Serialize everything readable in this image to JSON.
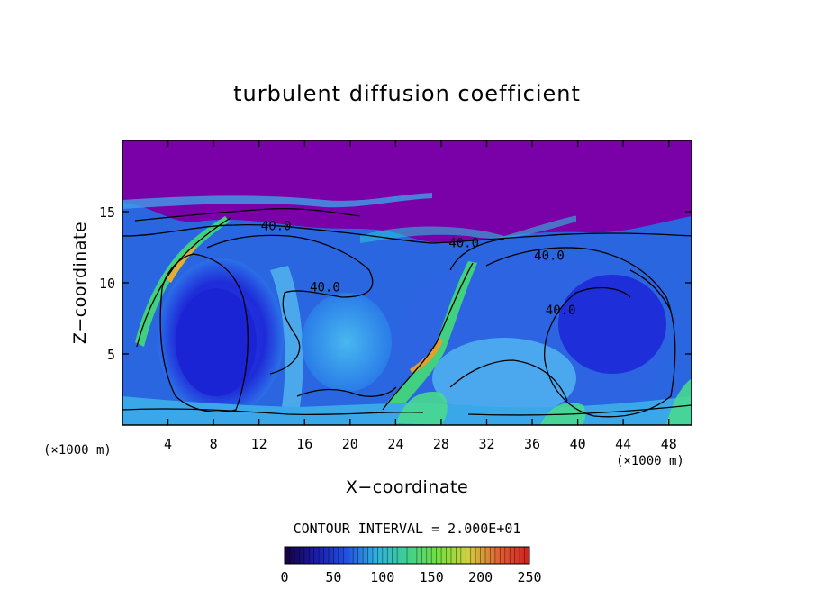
{
  "chart_data": {
    "type": "heatmap",
    "title": "turbulent diffusion coefficient",
    "xlabel": "X−coordinate",
    "ylabel": "Z−coordinate",
    "x_unit": "(×1000 m)",
    "y_unit": "(×1000 m)",
    "xlim": [
      0,
      50
    ],
    "ylim": [
      0,
      20
    ],
    "x_ticks": [
      4,
      8,
      12,
      16,
      20,
      24,
      28,
      32,
      36,
      40,
      44,
      48
    ],
    "y_ticks": [
      5,
      10,
      15
    ],
    "x_tick_labels": [
      "4",
      "8",
      "12",
      "16",
      "20",
      "24",
      "28",
      "32",
      "36",
      "40",
      "44",
      "48"
    ],
    "y_tick_labels": [
      "5",
      "10",
      "15"
    ],
    "contour_interval_text": "CONTOUR INTERVAL = 2.000E+01",
    "contour_labels": [
      {
        "text": "40.0",
        "x": 13.5,
        "z": 13.7
      },
      {
        "text": "40.0",
        "x": 30.0,
        "z": 12.5
      },
      {
        "text": "40.0",
        "x": 37.5,
        "z": 11.6
      },
      {
        "text": "40.0",
        "x": 17.8,
        "z": 9.4
      },
      {
        "text": "40.0",
        "x": 38.5,
        "z": 7.8
      }
    ],
    "colorbar": {
      "min": 0,
      "max": 250,
      "ticks": [
        0,
        50,
        100,
        150,
        200,
        250
      ],
      "tick_labels": [
        "0",
        "50",
        "100",
        "150",
        "200",
        "250"
      ],
      "colors": [
        "#14003c",
        "#1a1aa8",
        "#2050e0",
        "#30b0e0",
        "#40d090",
        "#70e040",
        "#d0d040",
        "#e06030",
        "#d02020"
      ]
    }
  },
  "colors": {
    "background_field": "#7a00a8",
    "upper_layer": "#7c00aa"
  }
}
